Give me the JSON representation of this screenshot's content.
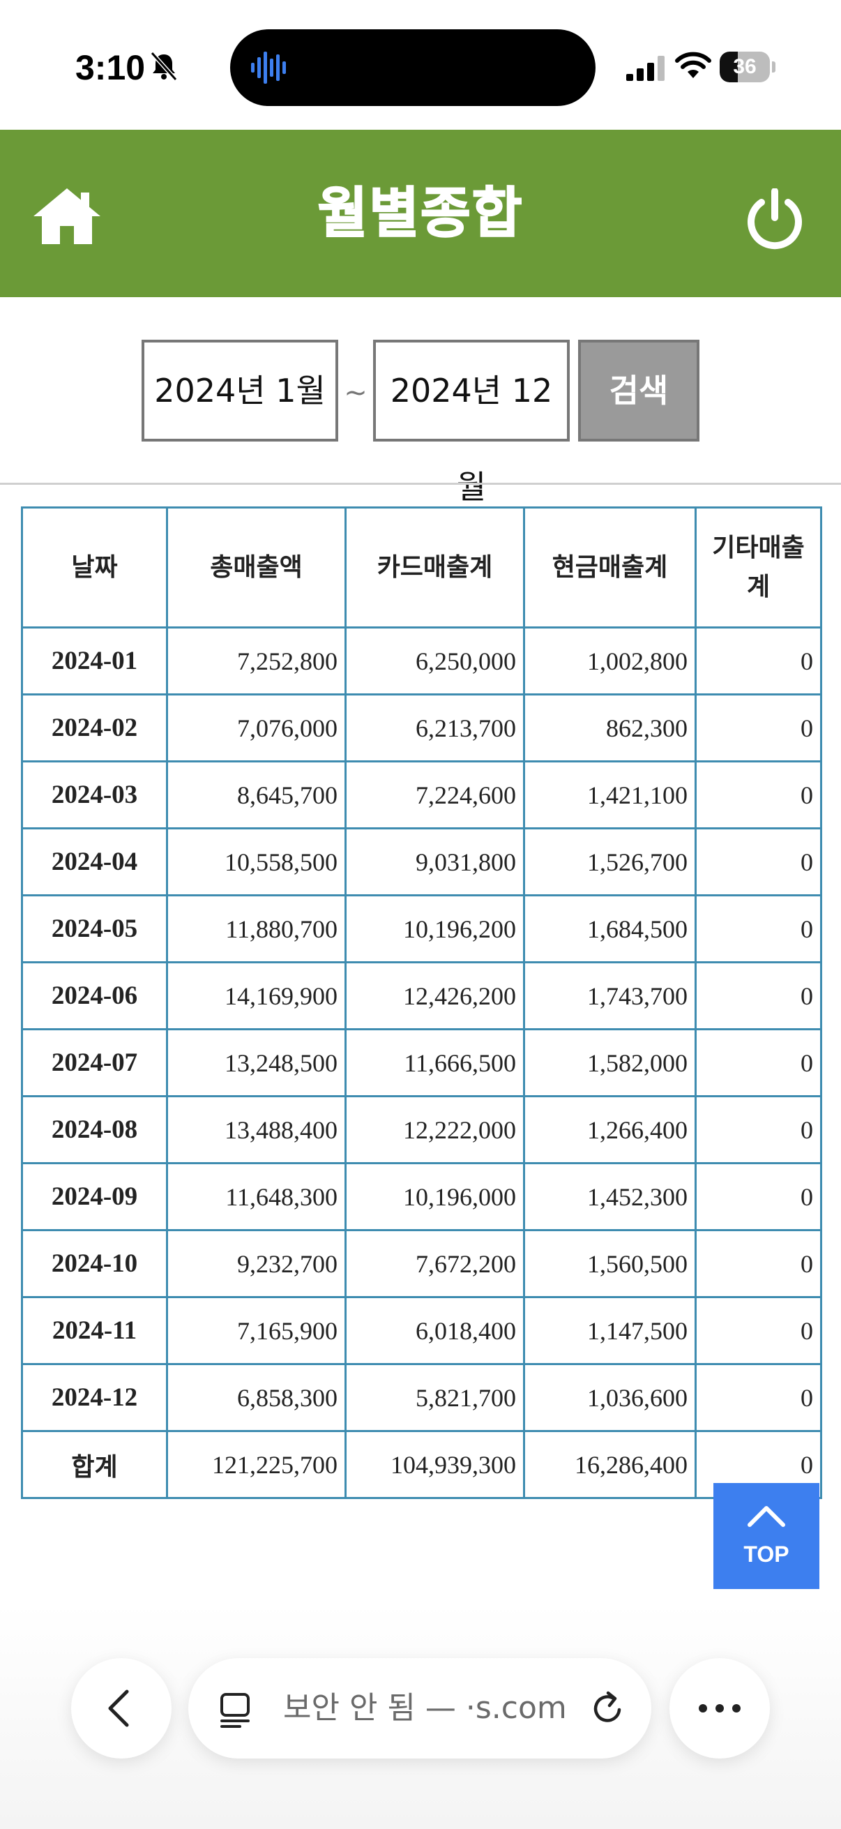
{
  "status_bar": {
    "time": "3:10",
    "battery_level": "36",
    "battery_fraction": 0.36
  },
  "header": {
    "title": "월별종합",
    "color": "#6b9a37"
  },
  "search": {
    "date_from": "2024년 1월",
    "separator": "~",
    "date_to": "2024년 12월",
    "button_label": "검색"
  },
  "table": {
    "headers": [
      "날짜",
      "총매출액",
      "카드매출계",
      "현금매출계",
      "기타매출계"
    ],
    "rows": [
      {
        "date": "2024-01",
        "total": "7,252,800",
        "card": "6,250,000",
        "cash": "1,002,800",
        "other": "0"
      },
      {
        "date": "2024-02",
        "total": "7,076,000",
        "card": "6,213,700",
        "cash": "862,300",
        "other": "0"
      },
      {
        "date": "2024-03",
        "total": "8,645,700",
        "card": "7,224,600",
        "cash": "1,421,100",
        "other": "0"
      },
      {
        "date": "2024-04",
        "total": "10,558,500",
        "card": "9,031,800",
        "cash": "1,526,700",
        "other": "0"
      },
      {
        "date": "2024-05",
        "total": "11,880,700",
        "card": "10,196,200",
        "cash": "1,684,500",
        "other": "0"
      },
      {
        "date": "2024-06",
        "total": "14,169,900",
        "card": "12,426,200",
        "cash": "1,743,700",
        "other": "0"
      },
      {
        "date": "2024-07",
        "total": "13,248,500",
        "card": "11,666,500",
        "cash": "1,582,000",
        "other": "0"
      },
      {
        "date": "2024-08",
        "total": "13,488,400",
        "card": "12,222,000",
        "cash": "1,266,400",
        "other": "0"
      },
      {
        "date": "2024-09",
        "total": "11,648,300",
        "card": "10,196,000",
        "cash": "1,452,300",
        "other": "0"
      },
      {
        "date": "2024-10",
        "total": "9,232,700",
        "card": "7,672,200",
        "cash": "1,560,500",
        "other": "0"
      },
      {
        "date": "2024-11",
        "total": "7,165,900",
        "card": "6,018,400",
        "cash": "1,147,500",
        "other": "0"
      },
      {
        "date": "2024-12",
        "total": "6,858,300",
        "card": "5,821,700",
        "cash": "1,036,600",
        "other": "0"
      }
    ],
    "totals": {
      "label": "합계",
      "total": "121,225,700",
      "card": "104,939,300",
      "cash": "16,286,400",
      "other": "0"
    },
    "border_color": "#3e8cb0"
  },
  "top_button": {
    "label": "TOP",
    "color": "#3d7fef"
  },
  "browser": {
    "url_text": "보안 안 됨 — ·s.com",
    "icons": [
      "back-icon",
      "reader-icon",
      "reload-icon",
      "more-icon"
    ]
  }
}
